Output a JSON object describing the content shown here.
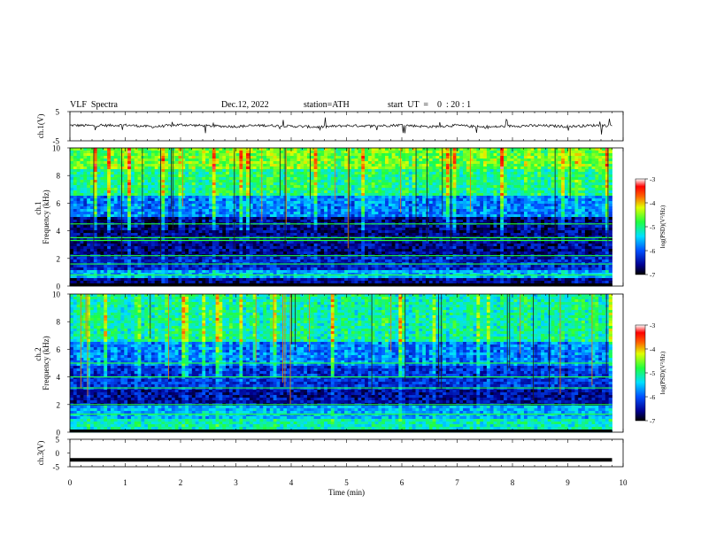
{
  "header": {
    "title": "VLF  Spectra",
    "date": "Dec.12, 2022",
    "station": "station=ATH",
    "start": "start  UT  =    0  : 20 : 1"
  },
  "chart_data": [
    {
      "type": "line",
      "panel": "ch1-waveform",
      "ylabel": "ch.1(V)",
      "ylim": [
        -5,
        5
      ],
      "yticks": [
        "5",
        "-5"
      ],
      "xlim": [
        0,
        10
      ],
      "series": [
        {
          "x": [
            0,
            0.5,
            1,
            1.5,
            2,
            2.5,
            3,
            3.5,
            4,
            4.5,
            5,
            5.5,
            6,
            6.5,
            7,
            7.5,
            8,
            8.5,
            9,
            9.5,
            9.8
          ],
          "values": [
            0.3,
            0.2,
            0.4,
            -0.2,
            0.5,
            0.1,
            -0.1,
            0.3,
            0.0,
            -0.3,
            0.2,
            0.1,
            0.4,
            -0.2,
            0.3,
            -0.4,
            0.1,
            0.2,
            -0.1,
            0.3,
            0.2
          ]
        }
      ]
    },
    {
      "type": "heatmap",
      "panel": "ch1-spectrogram",
      "ylabel": "Frequency  (kHz)",
      "channel_label": "ch.1",
      "ylim": [
        0,
        10
      ],
      "yticks": [
        "0",
        "2",
        "4",
        "6",
        "8",
        "10"
      ],
      "xlim": [
        0,
        10
      ],
      "colorbar": {
        "label": "log(PSD)(V²/Hz)",
        "ticks": [
          "-3",
          "-4",
          "-5",
          "-6",
          "-7"
        ],
        "range": [
          -7,
          -3
        ]
      },
      "bands": [
        {
          "from_khz": 0.0,
          "to_khz": 0.5,
          "value": -6.6
        },
        {
          "from_khz": 0.5,
          "to_khz": 1.2,
          "value": -5.6
        },
        {
          "from_khz": 1.2,
          "to_khz": 2.2,
          "value": -6.3
        },
        {
          "from_khz": 2.2,
          "to_khz": 5.0,
          "value": -6.6
        },
        {
          "from_khz": 5.0,
          "to_khz": 6.5,
          "value": -5.8
        },
        {
          "from_khz": 6.5,
          "to_khz": 8.5,
          "value": -5.0
        },
        {
          "from_khz": 8.5,
          "to_khz": 10.0,
          "value": -4.6
        }
      ],
      "lines_khz": [
        0.8,
        1.6,
        2.2,
        3.3,
        3.5,
        4.5
      ]
    },
    {
      "type": "heatmap",
      "panel": "ch2-spectrogram",
      "ylabel": "Frequency  (kHz)",
      "channel_label": "ch.2",
      "ylim": [
        0,
        10
      ],
      "yticks": [
        "0",
        "2",
        "4",
        "6",
        "8",
        "10"
      ],
      "xlim": [
        0,
        10
      ],
      "colorbar": {
        "label": "log(PSD)(V²/Hz)",
        "ticks": [
          "-3",
          "-4",
          "-5",
          "-6",
          "-7"
        ],
        "range": [
          -7,
          -3
        ]
      },
      "bands": [
        {
          "from_khz": 0.0,
          "to_khz": 1.0,
          "value": -5.2
        },
        {
          "from_khz": 1.0,
          "to_khz": 2.0,
          "value": -5.6
        },
        {
          "from_khz": 2.0,
          "to_khz": 3.0,
          "value": -6.5
        },
        {
          "from_khz": 3.0,
          "to_khz": 4.8,
          "value": -6.2
        },
        {
          "from_khz": 4.8,
          "to_khz": 6.5,
          "value": -5.8
        },
        {
          "from_khz": 6.5,
          "to_khz": 10.0,
          "value": -5.1
        }
      ],
      "lines_khz": [
        1.3,
        2.0,
        3.2,
        4.0,
        5.0
      ]
    },
    {
      "type": "line",
      "panel": "ch3-waveform",
      "ylabel": "ch.3(V)",
      "ylim": [
        -5,
        5
      ],
      "yticks": [
        "5",
        "0",
        "-5"
      ],
      "xlim": [
        0,
        10
      ],
      "series": [
        {
          "x": [
            0,
            9.8
          ],
          "values": [
            -2.5,
            -2.5
          ]
        }
      ]
    }
  ],
  "x_axis": {
    "label": "Time  (min)",
    "ticks": [
      "0",
      "1",
      "2",
      "3",
      "4",
      "5",
      "6",
      "7",
      "8",
      "9",
      "10"
    ]
  }
}
